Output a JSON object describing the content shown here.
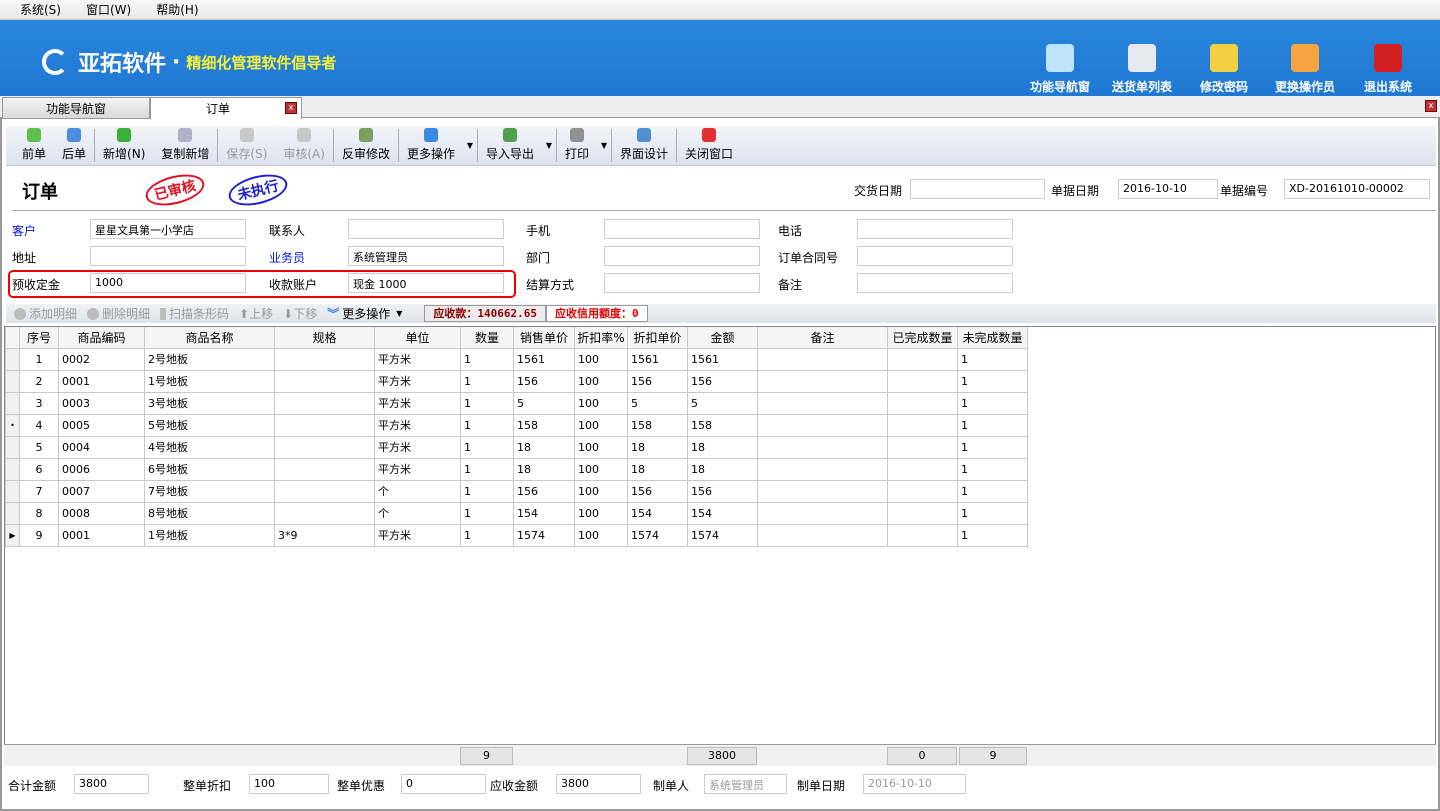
{
  "menu": [
    "系统(S)",
    "窗口(W)",
    "帮助(H)"
  ],
  "banner": {
    "brand": "亚拓软件",
    "dot": "·",
    "slogan": "精细化管理软件倡导者",
    "buttons": [
      {
        "label": "功能导航窗",
        "icon": "monitor-icon",
        "color": "#bfe3f7"
      },
      {
        "label": "送货单列表",
        "icon": "list-icon",
        "color": "#e8e8f0"
      },
      {
        "label": "修改密码",
        "icon": "lock-icon",
        "color": "#f0d040"
      },
      {
        "label": "更换操作员",
        "icon": "user-icon",
        "color": "#f5a540"
      },
      {
        "label": "退出系统",
        "icon": "power-icon",
        "color": "#d42020"
      }
    ]
  },
  "tabs": [
    {
      "label": "功能导航窗"
    },
    {
      "label": "订单"
    }
  ],
  "toolbar": [
    {
      "label": "前单",
      "icon": "arrow-left-icon",
      "color": "#5cc04a"
    },
    {
      "label": "后单",
      "icon": "arrow-right-icon",
      "color": "#4a8ee0"
    },
    {
      "label": "新增(N)",
      "icon": "plus-icon",
      "color": "#38b038"
    },
    {
      "label": "复制新增",
      "icon": "copy-icon",
      "color": "#b0b0c8"
    },
    {
      "label": "保存(S)",
      "icon": "save-icon",
      "color": "#c8c8c8",
      "disabled": true
    },
    {
      "label": "审核(A)",
      "icon": "check-icon",
      "color": "#c8c8c8",
      "disabled": true
    },
    {
      "label": "反审修改",
      "icon": "edit-icon",
      "color": "#7aa060"
    },
    {
      "label": "更多操作",
      "icon": "double-chevron-icon",
      "color": "#3a8ae0",
      "dropdown": true
    },
    {
      "label": "导入导出",
      "icon": "import-export-icon",
      "color": "#50a050",
      "dropdown": true
    },
    {
      "label": "打印",
      "icon": "printer-icon",
      "color": "#909090",
      "dropdown": true
    },
    {
      "label": "界面设计",
      "icon": "layout-icon",
      "color": "#5090d0"
    },
    {
      "label": "关闭窗口",
      "icon": "close-icon",
      "color": "#e03030"
    }
  ],
  "form": {
    "title": "订单",
    "stamp_audited": "已审核",
    "stamp_pending": "未执行",
    "delivery_date_label": "交货日期",
    "delivery_date": "",
    "doc_date_label": "单据日期",
    "doc_date": "2016-10-10",
    "doc_no_label": "单据编号",
    "doc_no": "XD-20161010-00002",
    "customer_label": "客户",
    "customer": "星星文具第一小学店",
    "contact_label": "联系人",
    "contact": "",
    "mobile_label": "手机",
    "mobile": "",
    "phone_label": "电话",
    "phone": "",
    "address_label": "地址",
    "address": "",
    "salesman_label": "业务员",
    "salesman": "系统管理员",
    "dept_label": "部门",
    "dept": "",
    "contract_label": "订单合同号",
    "contract": "",
    "deposit_label": "预收定金",
    "deposit": "1000",
    "account_label": "收款账户",
    "account": "现金 1000",
    "settle_label": "结算方式",
    "settle": "",
    "remark_label": "备注",
    "remark": ""
  },
  "grid_toolbar": {
    "add": "添加明细",
    "delete": "删除明细",
    "scan": "扫描条形码",
    "up": "上移",
    "down": "下移",
    "more": "更多操作",
    "receivable": "应收款：140662.65",
    "credit": "应收信用额度：0"
  },
  "grid": {
    "columns": [
      "序号",
      "商品编码",
      "商品名称",
      "规格",
      "单位",
      "数量",
      "销售单价",
      "折扣率%",
      "折扣单价",
      "金额",
      "备注",
      "已完成数量",
      "未完成数量"
    ],
    "rows": [
      [
        "1",
        "0002",
        "2号地板",
        "",
        "平方米",
        "1",
        "1561",
        "100",
        "1561",
        "1561",
        "",
        "",
        "1"
      ],
      [
        "2",
        "0001",
        "1号地板",
        "",
        "平方米",
        "1",
        "156",
        "100",
        "156",
        "156",
        "",
        "",
        "1"
      ],
      [
        "3",
        "0003",
        "3号地板",
        "",
        "平方米",
        "1",
        "5",
        "100",
        "5",
        "5",
        "",
        "",
        "1"
      ],
      [
        "4",
        "0005",
        "5号地板",
        "",
        "平方米",
        "1",
        "158",
        "100",
        "158",
        "158",
        "",
        "",
        "1"
      ],
      [
        "5",
        "0004",
        "4号地板",
        "",
        "平方米",
        "1",
        "18",
        "100",
        "18",
        "18",
        "",
        "",
        "1"
      ],
      [
        "6",
        "0006",
        "6号地板",
        "",
        "平方米",
        "1",
        "18",
        "100",
        "18",
        "18",
        "",
        "",
        "1"
      ],
      [
        "7",
        "0007",
        "7号地板",
        "",
        "个",
        "1",
        "156",
        "100",
        "156",
        "156",
        "",
        "",
        "1"
      ],
      [
        "8",
        "0008",
        "8号地板",
        "",
        "个",
        "1",
        "154",
        "100",
        "154",
        "154",
        "",
        "",
        "1"
      ],
      [
        "9",
        "0001",
        "1号地板",
        "3*9",
        "平方米",
        "1",
        "1574",
        "100",
        "1574",
        "1574",
        "",
        "",
        "1"
      ]
    ],
    "totals": {
      "qty": "9",
      "amount": "3800",
      "done": "0",
      "undone": "9"
    }
  },
  "footer": {
    "total_label": "合计金额",
    "total": "3800",
    "discount_label": "整单折扣",
    "discount": "100",
    "offer_label": "整单优惠",
    "offer": "0",
    "due_label": "应收金额",
    "due": "3800",
    "maker_label": "制单人",
    "maker": "系统管理员",
    "make_date_label": "制单日期",
    "make_date": "2016-10-10"
  }
}
